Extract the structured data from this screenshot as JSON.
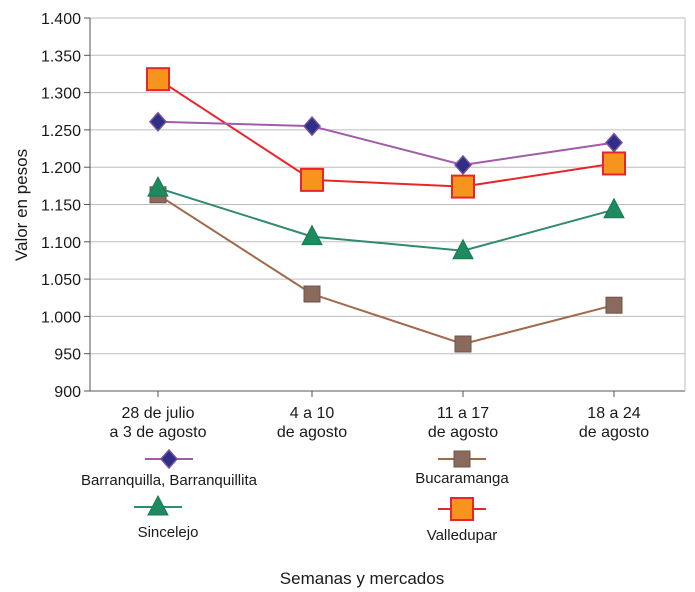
{
  "chart_data": {
    "type": "line",
    "xlabel": "Semanas y mercados",
    "ylabel": "Valor en pesos",
    "ylim": [
      900,
      1400
    ],
    "yticks": [
      "900",
      "950",
      "1.000",
      "1.050",
      "1.100",
      "1.150",
      "1.200",
      "1.250",
      "1.300",
      "1.350",
      "1.400"
    ],
    "categories": [
      [
        "28 de julio",
        "a 3 de agosto"
      ],
      [
        "4 a 10",
        "de agosto"
      ],
      [
        "11 a 17",
        "de agosto"
      ],
      [
        "18 a 24",
        "de agosto"
      ]
    ],
    "grid": true,
    "legend_position": "bottom",
    "series": [
      {
        "name": "Barranquilla, Barranquillita",
        "marker": "diamond",
        "line_color": "#a25ba8",
        "marker_color": "#2d2f88",
        "values": [
          1261,
          1255,
          1203,
          1233
        ]
      },
      {
        "name": "Bucaramanga",
        "marker": "square-small",
        "line_color": "#a0694a",
        "marker_color": "#8a6a5c",
        "values": [
          1163,
          1030,
          963,
          1015
        ]
      },
      {
        "name": "Sincelejo",
        "marker": "triangle",
        "line_color": "#2f8a6f",
        "marker_color": "#1e8a5f",
        "values": [
          1172,
          1107,
          1088,
          1143
        ]
      },
      {
        "name": "Valledupar",
        "marker": "square-large",
        "line_color": "#e8262a",
        "marker_color": "#f7941d",
        "values": [
          1318,
          1183,
          1174,
          1205
        ]
      }
    ]
  }
}
